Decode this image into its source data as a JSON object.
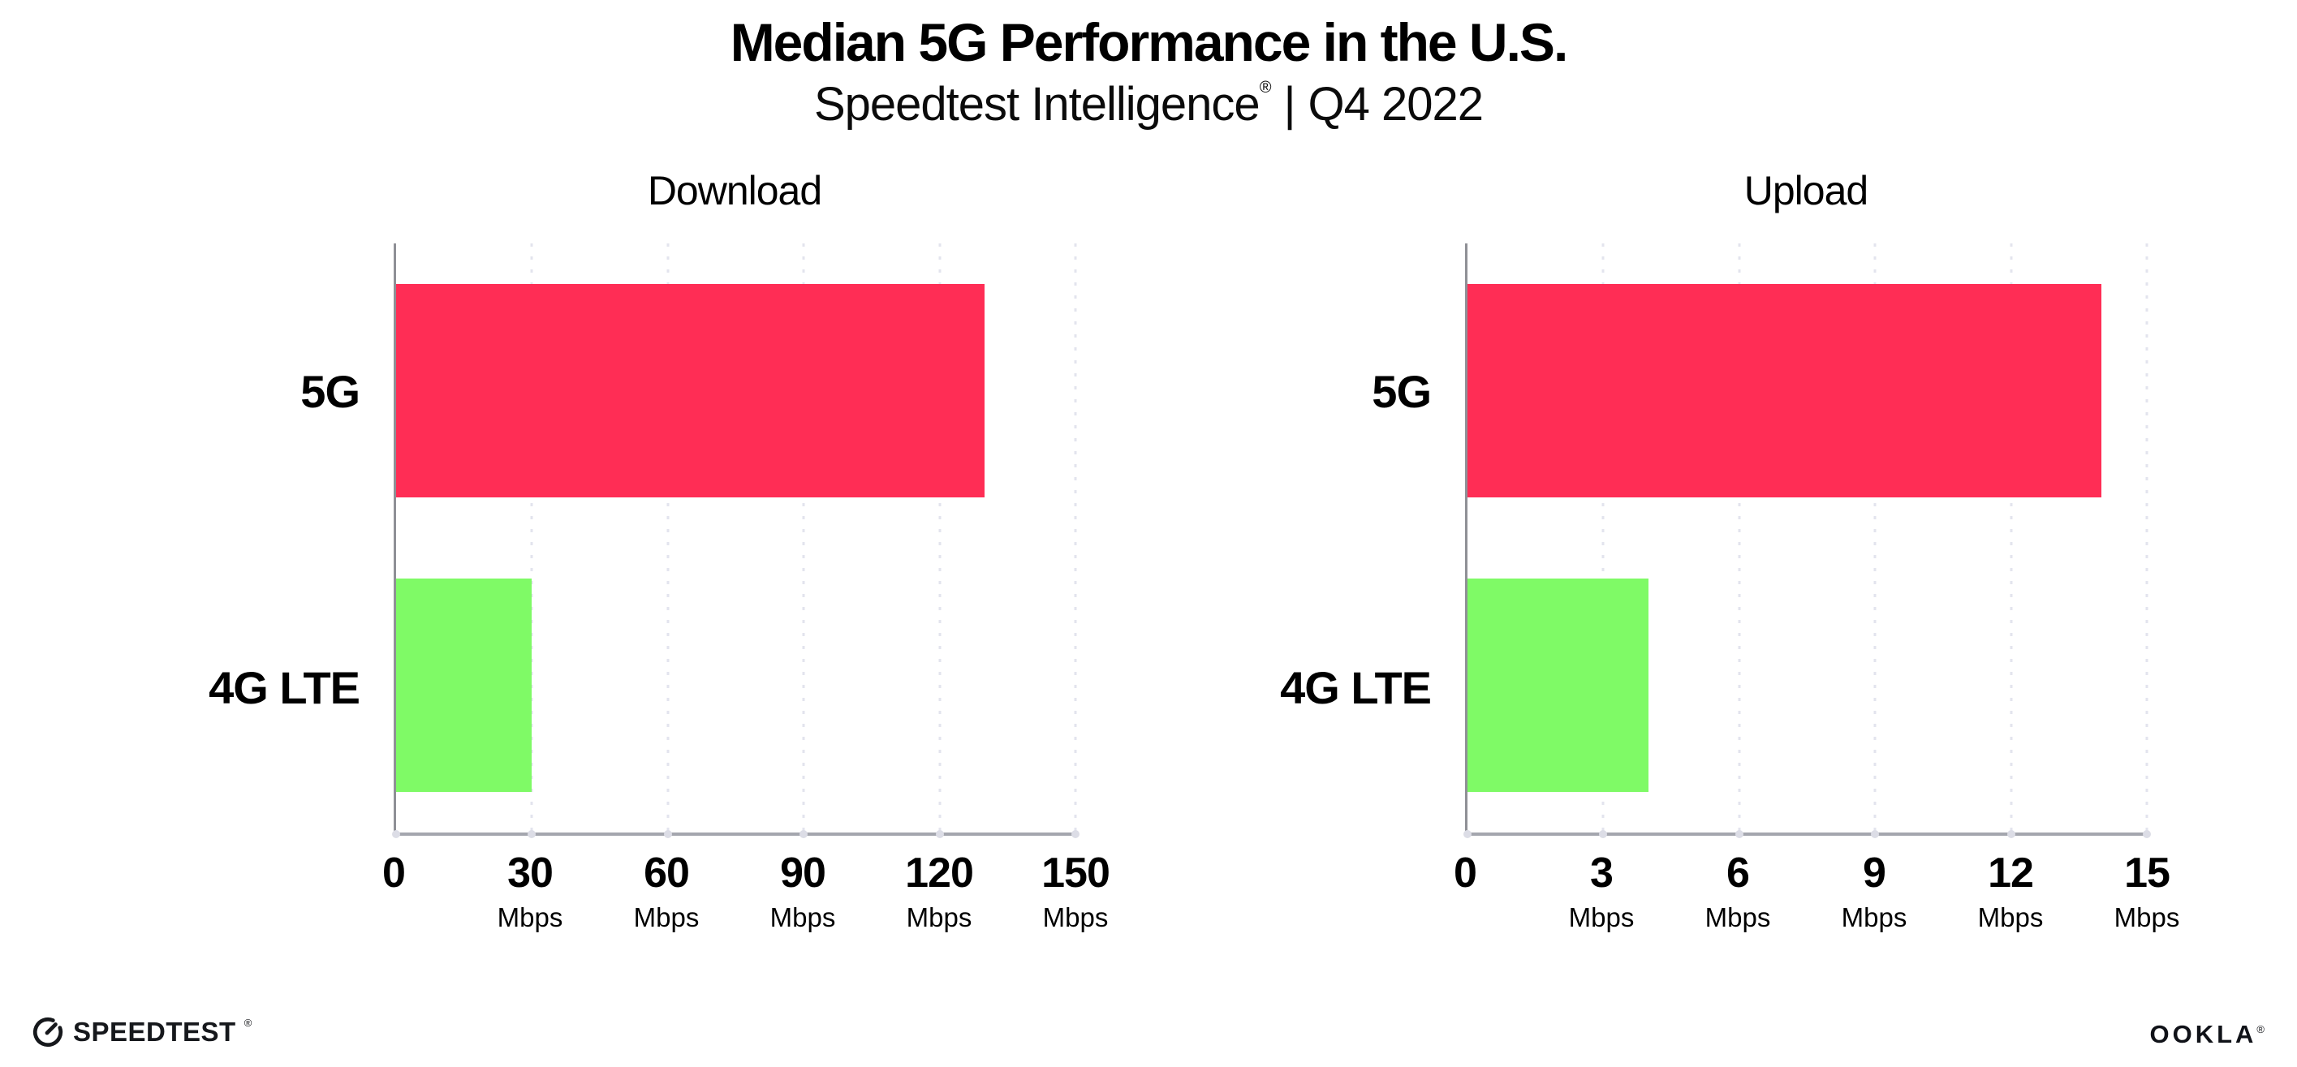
{
  "header": {
    "title": "Median 5G Performance in the U.S.",
    "subtitle_brand": "Speedtest Intelligence",
    "subtitle_reg": "®",
    "subtitle_separator": "|",
    "subtitle_period": "Q4 2022"
  },
  "chart_data": [
    {
      "type": "bar",
      "orientation": "horizontal",
      "title": "Download",
      "categories": [
        "5G",
        "4G LTE"
      ],
      "values": [
        130,
        30
      ],
      "value_unit": "Mbps",
      "xlim": [
        0,
        150
      ],
      "xticks": [
        {
          "value": 0,
          "label": "0",
          "unit": ""
        },
        {
          "value": 30,
          "label": "30",
          "unit": "Mbps"
        },
        {
          "value": 60,
          "label": "60",
          "unit": "Mbps"
        },
        {
          "value": 90,
          "label": "90",
          "unit": "Mbps"
        },
        {
          "value": 120,
          "label": "120",
          "unit": "Mbps"
        },
        {
          "value": 150,
          "label": "150",
          "unit": "Mbps"
        }
      ],
      "bar_colors": [
        "#FF2D55",
        "#7FFA66"
      ],
      "grid": "dotted-vertical",
      "legend": "none"
    },
    {
      "type": "bar",
      "orientation": "horizontal",
      "title": "Upload",
      "categories": [
        "5G",
        "4G LTE"
      ],
      "values": [
        14,
        4
      ],
      "value_unit": "Mbps",
      "xlim": [
        0,
        15
      ],
      "xticks": [
        {
          "value": 0,
          "label": "0",
          "unit": ""
        },
        {
          "value": 3,
          "label": "3",
          "unit": "Mbps"
        },
        {
          "value": 6,
          "label": "6",
          "unit": "Mbps"
        },
        {
          "value": 9,
          "label": "9",
          "unit": "Mbps"
        },
        {
          "value": 12,
          "label": "12",
          "unit": "Mbps"
        },
        {
          "value": 15,
          "label": "15",
          "unit": "Mbps"
        }
      ],
      "bar_colors": [
        "#FF2D55",
        "#7FFA66"
      ],
      "grid": "dotted-vertical",
      "legend": "none"
    }
  ],
  "footer": {
    "speedtest_label": "SPEEDTEST",
    "speedtest_mark": "®",
    "ookla_label": "OOKLA",
    "ookla_mark": "®"
  },
  "colors": {
    "bar_5g": "#FF2D55",
    "bar_4g_lte": "#7FFA66",
    "x_axis_line": "#A4A6AE",
    "y_axis_line": "#8F9096",
    "gridline": "#E3E4EE",
    "text": "#000000"
  }
}
